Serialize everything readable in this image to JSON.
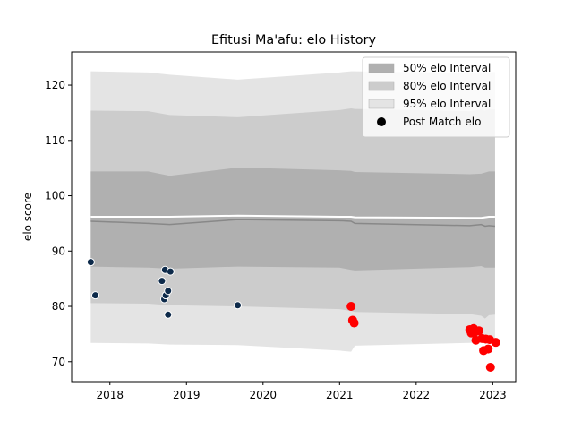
{
  "chart_data": {
    "type": "scatter",
    "title": "Efitusi Ma'afu: elo History",
    "xlabel": "",
    "ylabel": "elo score",
    "xlim": [
      2017.5,
      2023.3
    ],
    "ylim": [
      66.4,
      126.0
    ],
    "xticks": [
      2018,
      2019,
      2020,
      2021,
      2022,
      2023
    ],
    "xtick_labels": [
      "2018",
      "2019",
      "2020",
      "2021",
      "2022",
      "2023"
    ],
    "yticks": [
      70,
      80,
      90,
      100,
      110,
      120
    ],
    "ytick_labels": [
      "70",
      "80",
      "90",
      "100",
      "110",
      "120"
    ],
    "grid": false,
    "legend_position": "top-right",
    "colors": {
      "band_50": "#b0b0b0",
      "band_80": "#cccccc",
      "band_95": "#e4e4e4",
      "mean_line": "#888888",
      "upper_white": "#ffffff",
      "points_early": "#0d2a4a",
      "points_late": "#ff0000"
    },
    "bands": {
      "x": [
        2017.75,
        2018.5,
        2018.78,
        2019.67,
        2021.0,
        2021.15,
        2021.2,
        2022.7,
        2022.85,
        2022.9,
        2022.95,
        2023.03
      ],
      "mean": [
        95.4,
        95.0,
        94.8,
        95.7,
        95.5,
        95.4,
        95.0,
        94.6,
        94.8,
        94.5,
        94.6,
        94.5
      ],
      "p50_high": [
        104.4,
        104.4,
        103.6,
        105.1,
        104.6,
        104.5,
        104.3,
        103.9,
        104.0,
        104.2,
        104.4,
        104.4
      ],
      "p50_low": [
        96.2,
        96.2,
        96.2,
        96.4,
        96.2,
        96.2,
        96.1,
        96.0,
        96.0,
        96.1,
        96.2,
        96.2
      ],
      "p80_high": [
        115.4,
        115.3,
        114.6,
        114.2,
        115.5,
        115.8,
        115.7,
        115.3,
        115.6,
        115.4,
        115.6,
        115.6
      ],
      "p80_low": [
        87.2,
        87.0,
        86.8,
        87.2,
        87.0,
        86.6,
        86.5,
        87.1,
        87.3,
        87.0,
        87.0,
        87.0
      ],
      "p95_high": [
        122.5,
        122.3,
        121.9,
        121.0,
        122.3,
        122.5,
        122.5,
        122.2,
        122.4,
        122.3,
        122.3,
        122.4
      ],
      "p95_low": [
        80.6,
        80.5,
        80.2,
        80.0,
        79.5,
        79.2,
        79.0,
        78.6,
        78.3,
        77.8,
        78.4,
        78.5
      ],
      "p95_low_alt": [
        73.4,
        73.3,
        73.1,
        73.0,
        72.0,
        71.8,
        72.9,
        73.4,
        73.5,
        73.3,
        73.6,
        73.7
      ]
    },
    "series": [
      {
        "name": "Post Match elo",
        "group": "early",
        "points": [
          [
            2017.75,
            88.0
          ],
          [
            2017.81,
            82.0
          ],
          [
            2018.68,
            84.6
          ],
          [
            2018.71,
            81.3
          ],
          [
            2018.72,
            86.6
          ],
          [
            2018.73,
            82.0
          ],
          [
            2018.76,
            82.8
          ],
          [
            2018.76,
            78.5
          ],
          [
            2018.79,
            86.3
          ],
          [
            2019.67,
            80.2
          ]
        ]
      },
      {
        "name": "",
        "group": "late",
        "points": [
          [
            2021.15,
            80.0
          ],
          [
            2021.17,
            77.5
          ],
          [
            2021.19,
            77.0
          ],
          [
            2022.7,
            75.8
          ],
          [
            2022.72,
            75.2
          ],
          [
            2022.75,
            76.0
          ],
          [
            2022.77,
            75.4
          ],
          [
            2022.78,
            73.9
          ],
          [
            2022.82,
            75.6
          ],
          [
            2022.86,
            74.2
          ],
          [
            2022.88,
            72.0
          ],
          [
            2022.91,
            74.1
          ],
          [
            2022.94,
            72.3
          ],
          [
            2022.96,
            74.0
          ],
          [
            2022.97,
            69.0
          ],
          [
            2023.04,
            73.5
          ]
        ]
      }
    ],
    "legend": [
      {
        "label": "50% elo Interval",
        "kind": "patch",
        "color": "#b0b0b0"
      },
      {
        "label": "80% elo Interval",
        "kind": "patch",
        "color": "#cccccc"
      },
      {
        "label": "95% elo Interval",
        "kind": "patch",
        "color": "#e4e4e4"
      },
      {
        "label": "Post Match elo",
        "kind": "marker",
        "color": "#000000"
      }
    ]
  }
}
